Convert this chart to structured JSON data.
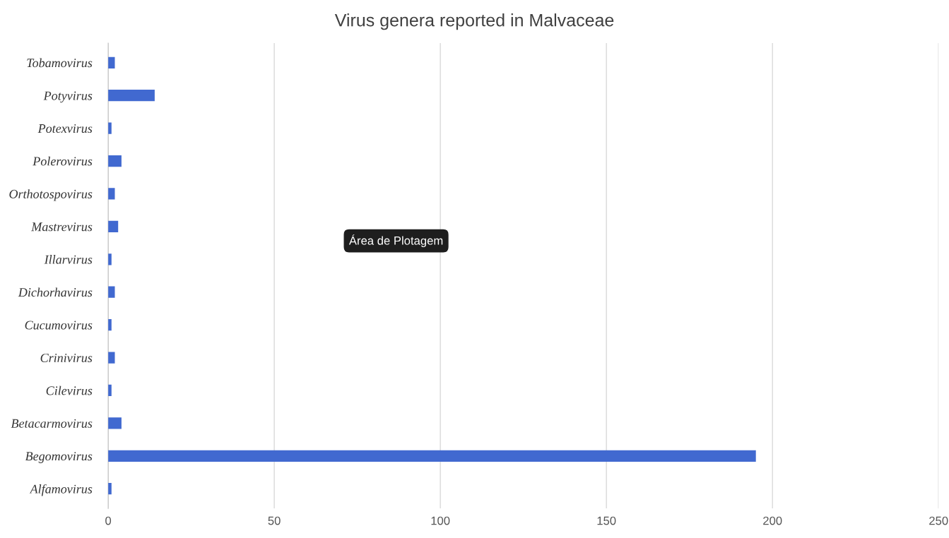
{
  "chart_data": {
    "type": "bar",
    "orientation": "horizontal",
    "title": "Virus genera reported in Malvaceae",
    "categories": [
      "Tobamovirus",
      "Potyvirus",
      "Potexvirus",
      "Polerovirus",
      "Orthotospovirus",
      "Mastrevirus",
      "Illarvirus",
      "Dichorhavirus",
      "Cucumovirus",
      "Crinivirus",
      "Cilevirus",
      "Betacarmovirus",
      "Begomovirus",
      "Alfamovirus"
    ],
    "values": [
      2,
      14,
      1,
      4,
      2,
      3,
      1,
      2,
      1,
      2,
      1,
      4,
      195,
      1
    ],
    "color": "#4169d0",
    "xlim": [
      0,
      250
    ],
    "xticks": [
      0,
      50,
      100,
      150,
      200,
      250
    ],
    "grid": "x",
    "annotations": [
      "Área de Plotagem"
    ]
  }
}
